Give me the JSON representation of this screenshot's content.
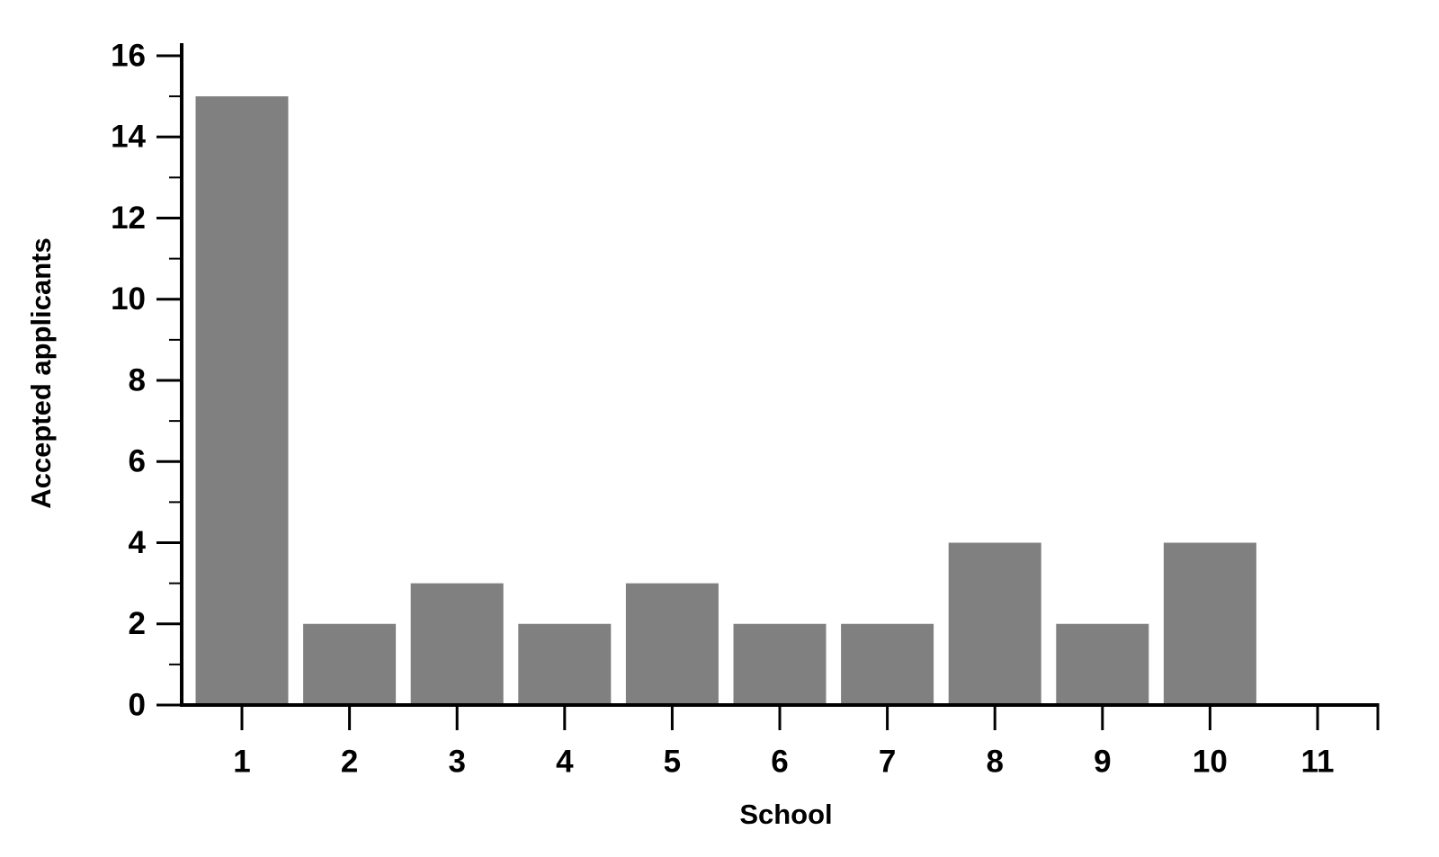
{
  "chart_data": {
    "type": "bar",
    "xlabel": "School",
    "ylabel": "Accepted applicants",
    "categories": [
      "1",
      "2",
      "3",
      "4",
      "5",
      "6",
      "7",
      "8",
      "9",
      "10",
      "11"
    ],
    "values": [
      15,
      2,
      3,
      2,
      3,
      2,
      2,
      4,
      2,
      4,
      0
    ],
    "color": "#808080",
    "ylim": [
      0,
      16
    ],
    "yticks": [
      0,
      2,
      4,
      6,
      8,
      10,
      12,
      14,
      16
    ],
    "yminorticks": [
      1,
      3,
      5,
      7,
      9,
      11,
      13,
      15
    ],
    "grid": false
  }
}
